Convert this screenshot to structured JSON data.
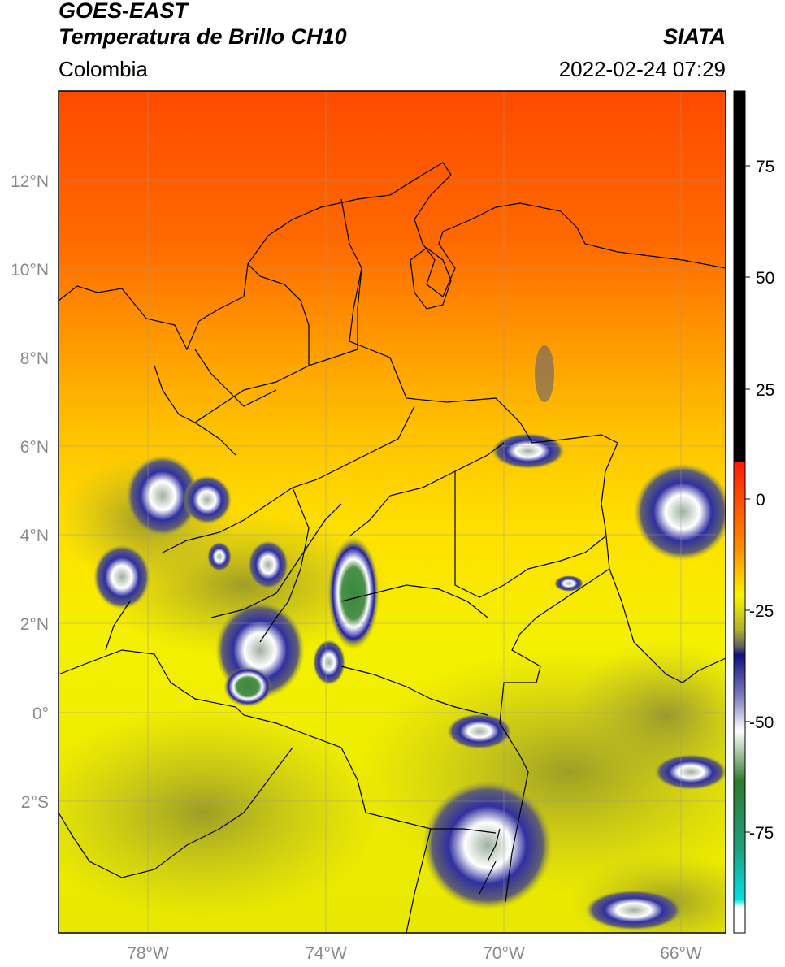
{
  "header": {
    "line1": "GOES-EAST",
    "line2": "Temperatura de Brillo CH10",
    "region": "Colombia",
    "brand": "SIATA",
    "timestamp": "2022-02-24 07:29"
  },
  "map": {
    "lon_ticks": [
      "78°W",
      "74°W",
      "70°W",
      "66°W"
    ],
    "lat_ticks": [
      "12°N",
      "10°N",
      "8°N",
      "6°N",
      "4°N",
      "2°N",
      "0°",
      "2°S"
    ],
    "extent": {
      "lon": [
        -80,
        -65
      ],
      "lat": [
        -5,
        14
      ]
    }
  },
  "colorbar": {
    "ticks": [
      "75",
      "50",
      "25",
      "0",
      "-25",
      "-50",
      "-75"
    ],
    "range": [
      -95,
      90
    ],
    "colors": {
      "black": "#000000",
      "red": "#ff1a00",
      "orange": "#ff8a00",
      "yellow": "#f5f500",
      "olive": "#b0b030",
      "gray": "#606060",
      "navy": "#101080",
      "white": "#ffffff",
      "green": "#2f7a2f",
      "teal": "#20a080",
      "cyan": "#00e0e0"
    }
  }
}
